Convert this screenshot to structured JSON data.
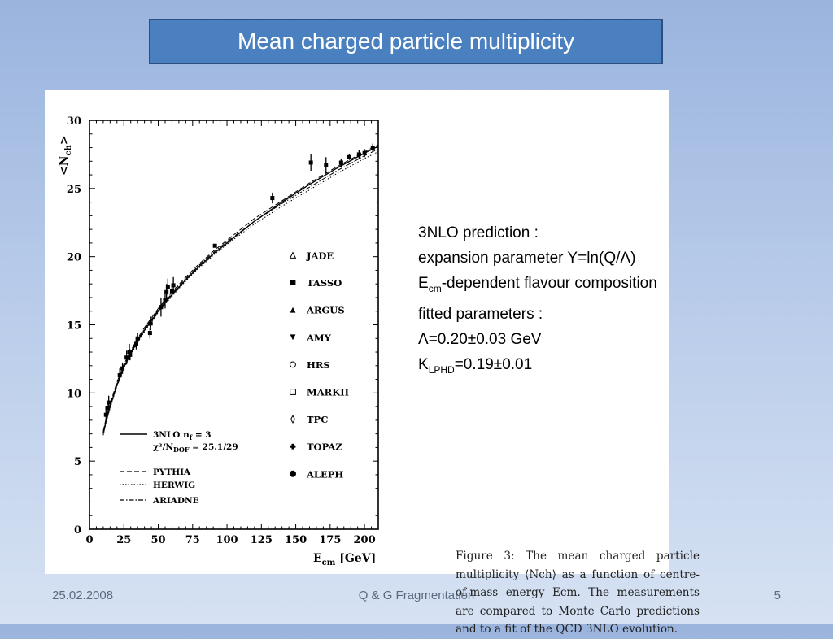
{
  "slide": {
    "title": "Mean charged particle multiplicity",
    "footer_date": "25.02.2008",
    "footer_center": "Q & G Fragmentation",
    "page_number": "5"
  },
  "notes": {
    "line1": "3NLO prediction :",
    "line2": "expansion parameter Y=ln(Q/Λ)",
    "line3_main": "E",
    "line3_sub": "cm",
    "line3_rest": "-dependent flavour composition",
    "line4": "fitted parameters :",
    "line5": "Λ=0.20±0.03 GeV",
    "line6_main": "K",
    "line6_sub": "LPHD",
    "line6_rest": "=0.19±0.01"
  },
  "caption": {
    "text": "Figure 3: The mean charged particle multiplicity ⟨Nch⟩ as a function of centre-of-mass energy Ecm. The measurements are compared to Monte Carlo predictions and to a fit of the QCD 3NLO evolution."
  },
  "chart_data": {
    "type": "scatter",
    "xlabel": "E",
    "xlabel_sub": "cm",
    "xlabel_unit": " [GeV]",
    "ylabel": "<N",
    "ylabel_sub": "ch",
    "ylabel_close": ">",
    "xlim": [
      0,
      210
    ],
    "ylim": [
      0,
      30
    ],
    "x_ticks": [
      0,
      25,
      50,
      75,
      100,
      125,
      150,
      175,
      200
    ],
    "y_ticks": [
      0,
      5,
      10,
      15,
      20,
      25,
      30
    ],
    "legend_markers": [
      {
        "name": "JADE",
        "marker": "triangle-open"
      },
      {
        "name": "TASSO",
        "marker": "square-filled"
      },
      {
        "name": "ARGUS",
        "marker": "triangle-filled"
      },
      {
        "name": "AMY",
        "marker": "triangle-down-filled"
      },
      {
        "name": "HRS",
        "marker": "circle-open"
      },
      {
        "name": "MARKII",
        "marker": "square-open"
      },
      {
        "name": "TPC",
        "marker": "diamond-open"
      },
      {
        "name": "TOPAZ",
        "marker": "cross"
      },
      {
        "name": "ALEPH",
        "marker": "circle-filled"
      }
    ],
    "legend_lines": [
      {
        "name": "3NLO n",
        "name_sub": "f",
        "name_rest": " = 3",
        "style": "solid"
      },
      {
        "name": "χ²/N",
        "name_sub": "DOF",
        "name_rest": " = 25.1/29",
        "style": "none"
      },
      {
        "name": "PYTHIA",
        "style": "dashed"
      },
      {
        "name": "HERWIG",
        "style": "dotted"
      },
      {
        "name": "ARIADNE",
        "style": "dashdot"
      }
    ],
    "data_points": [
      {
        "x": 12,
        "y": 8.4,
        "err": 0.5
      },
      {
        "x": 13,
        "y": 8.9,
        "err": 0.5
      },
      {
        "x": 14,
        "y": 9.3,
        "err": 0.5
      },
      {
        "x": 22,
        "y": 11.3,
        "err": 0.5
      },
      {
        "x": 24,
        "y": 11.8,
        "err": 0.4
      },
      {
        "x": 27,
        "y": 12.6,
        "err": 0.5
      },
      {
        "x": 29,
        "y": 13.0,
        "err": 0.6
      },
      {
        "x": 29.5,
        "y": 12.8,
        "err": 0.4
      },
      {
        "x": 34,
        "y": 13.6,
        "err": 0.4
      },
      {
        "x": 35,
        "y": 14.0,
        "err": 0.4
      },
      {
        "x": 44,
        "y": 14.4,
        "err": 0.4
      },
      {
        "x": 44.5,
        "y": 15.1,
        "err": 0.5
      },
      {
        "x": 52,
        "y": 16.3,
        "err": 0.7
      },
      {
        "x": 55,
        "y": 16.8,
        "err": 0.6
      },
      {
        "x": 56,
        "y": 17.4,
        "err": 0.6
      },
      {
        "x": 57,
        "y": 17.8,
        "err": 0.6
      },
      {
        "x": 60,
        "y": 17.5,
        "err": 0.5
      },
      {
        "x": 61,
        "y": 17.9,
        "err": 0.6
      },
      {
        "x": 91.2,
        "y": 20.8,
        "err": 0.1
      },
      {
        "x": 133,
        "y": 24.3,
        "err": 0.4
      },
      {
        "x": 161,
        "y": 26.9,
        "err": 0.6
      },
      {
        "x": 172,
        "y": 26.7,
        "err": 0.6
      },
      {
        "x": 183,
        "y": 26.9,
        "err": 0.3
      },
      {
        "x": 189,
        "y": 27.3,
        "err": 0.2
      },
      {
        "x": 196,
        "y": 27.5,
        "err": 0.3
      },
      {
        "x": 200,
        "y": 27.6,
        "err": 0.3
      },
      {
        "x": 206,
        "y": 28.0,
        "err": 0.3
      }
    ],
    "curves": [
      {
        "name": "3NLO",
        "style": "solid",
        "x": [
          10,
          12,
          15,
          20,
          25,
          30,
          35,
          40,
          50,
          60,
          70,
          80,
          91.2,
          100,
          120,
          140,
          160,
          180,
          200,
          210
        ],
        "y": [
          7.0,
          7.9,
          9.0,
          10.6,
          11.9,
          12.9,
          13.8,
          14.6,
          16.0,
          17.2,
          18.3,
          19.3,
          20.3,
          21.0,
          22.6,
          24.0,
          25.3,
          26.5,
          27.6,
          28.1
        ]
      },
      {
        "name": "PYTHIA",
        "style": "dashed",
        "x": [
          10,
          12,
          15,
          20,
          25,
          30,
          35,
          40,
          50,
          60,
          70,
          80,
          91.2,
          100,
          120,
          140,
          160,
          180,
          200,
          210
        ],
        "y": [
          7.2,
          8.1,
          9.2,
          10.8,
          12.1,
          13.1,
          14.0,
          14.8,
          16.2,
          17.4,
          18.5,
          19.5,
          20.5,
          21.2,
          22.8,
          24.1,
          25.4,
          26.6,
          27.7,
          28.2
        ]
      },
      {
        "name": "HERWIG",
        "style": "dotted",
        "x": [
          10,
          12,
          15,
          20,
          25,
          30,
          35,
          40,
          50,
          60,
          70,
          80,
          91.2,
          100,
          120,
          140,
          160,
          180,
          200,
          210
        ],
        "y": [
          6.9,
          7.8,
          8.9,
          10.5,
          11.8,
          12.8,
          13.7,
          14.5,
          15.9,
          17.1,
          18.2,
          19.2,
          20.2,
          20.9,
          22.4,
          23.7,
          24.9,
          26.1,
          27.2,
          27.7
        ]
      },
      {
        "name": "ARIADNE",
        "style": "dashdot",
        "x": [
          10,
          12,
          15,
          20,
          25,
          30,
          35,
          40,
          50,
          60,
          70,
          80,
          91.2,
          100,
          120,
          140,
          160,
          180,
          200,
          210
        ],
        "y": [
          7.1,
          8.0,
          9.1,
          10.7,
          12.0,
          13.0,
          13.9,
          14.7,
          16.1,
          17.3,
          18.4,
          19.4,
          20.4,
          21.1,
          22.6,
          23.9,
          25.1,
          26.3,
          27.4,
          27.9
        ]
      }
    ]
  }
}
